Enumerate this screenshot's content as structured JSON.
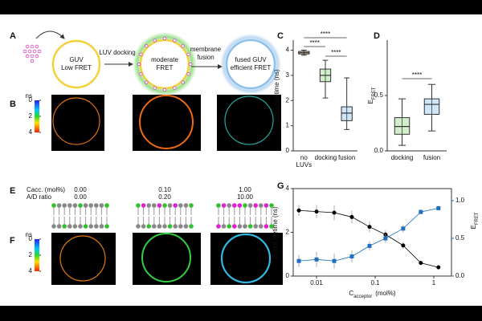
{
  "panel_labels": [
    "A",
    "B",
    "C",
    "D",
    "E",
    "F",
    "G"
  ],
  "schematic": {
    "guv": [
      "GUV",
      "Low FRET"
    ],
    "step1": "LUV docking",
    "moderate": [
      "moderate",
      "FRET"
    ],
    "step2": [
      "membrane",
      "fusion"
    ],
    "fused": [
      "fused GUV",
      "efficient FRET"
    ]
  },
  "colorbar_b": {
    "unit": "ns",
    "ticks": [
      0,
      2,
      4
    ]
  },
  "colorbar_f": {
    "unit": "ns",
    "ticks": [
      0,
      2,
      4
    ]
  },
  "composition": {
    "labels": [
      "Cacc. (mol%)",
      "A/D ratio"
    ],
    "columns": [
      [
        "0.00",
        "0.00"
      ],
      [
        "0.10",
        "0.20"
      ],
      [
        "1.00",
        "10.00"
      ]
    ]
  },
  "chart_data": [
    {
      "type": "box",
      "ylabel": {
        "main": "Donor lifetime (ns)"
      },
      "categories": [
        "no LUVs",
        "docking",
        "fusion"
      ],
      "colors": [
        "#f0a020",
        "#7fcf6f",
        "#7ab6ea"
      ],
      "boxes": [
        {
          "min": 3.8,
          "q1": 3.85,
          "median": 3.9,
          "q3": 3.95,
          "max": 4.0
        },
        {
          "min": 2.1,
          "q1": 2.75,
          "median": 3.0,
          "q3": 3.25,
          "max": 3.6
        },
        {
          "min": 0.85,
          "q1": 1.2,
          "median": 1.5,
          "q3": 1.75,
          "max": 2.9
        }
      ],
      "ylim": [
        0,
        4.4
      ],
      "yticks": [
        0,
        1,
        2,
        3,
        4
      ],
      "annotations": [
        "****",
        "****",
        "****"
      ]
    },
    {
      "type": "box",
      "ylabel": {
        "main": "E",
        "sub": "FRET"
      },
      "categories": [
        "docking",
        "fusion"
      ],
      "colors": [
        "#7fcf6f",
        "#7ab6ea"
      ],
      "boxes": [
        {
          "min": 0.05,
          "q1": 0.15,
          "median": 0.22,
          "q3": 0.3,
          "max": 0.47
        },
        {
          "min": 0.18,
          "q1": 0.33,
          "median": 0.42,
          "q3": 0.47,
          "max": 0.6
        }
      ],
      "ylim": [
        0,
        1.0
      ],
      "yticks": [
        {
          "value": 0,
          "label": "0.0"
        },
        0.5
      ],
      "annotations": [
        "****"
      ]
    },
    {
      "type": "line",
      "xlog": true,
      "xlabel": {
        "main": "C",
        "sub": "acceptor",
        "unit": "(mol%)"
      },
      "ylabel": {
        "main": "Donor lifetime (ns)"
      },
      "y2label": {
        "main": "E",
        "sub": "FRET"
      },
      "x": [
        0.005,
        0.01,
        0.02,
        0.04,
        0.08,
        0.15,
        0.3,
        0.6,
        1.2
      ],
      "series": [
        {
          "color": "#000000",
          "marker": "circle",
          "values": [
            3.0,
            2.95,
            2.9,
            2.7,
            2.25,
            1.9,
            1.4,
            0.6,
            0.4
          ],
          "errors": [
            0.25,
            0.3,
            0.35,
            0.3,
            0.25,
            0.2,
            0.15,
            0.1,
            0.1
          ]
        },
        {
          "color": "#1f6fbf",
          "marker": "square",
          "axis": "y2",
          "values": [
            0.2,
            0.22,
            0.2,
            0.26,
            0.4,
            0.5,
            0.63,
            0.85,
            0.9
          ],
          "errors": [
            0.08,
            0.1,
            0.1,
            0.08,
            0.06,
            0.06,
            0.05,
            0.03,
            0.03
          ]
        }
      ],
      "xlim": [
        0.004,
        2
      ],
      "xticks": [
        0.01,
        0.1,
        1
      ],
      "ylim": [
        0,
        4
      ],
      "yticks": [
        0,
        2,
        4
      ],
      "y2lim": [
        0,
        1.16
      ],
      "y2ticks": [
        {
          "value": 0,
          "label": "0.0"
        },
        0.5,
        {
          "value": 1,
          "label": "1.0"
        }
      ]
    }
  ]
}
